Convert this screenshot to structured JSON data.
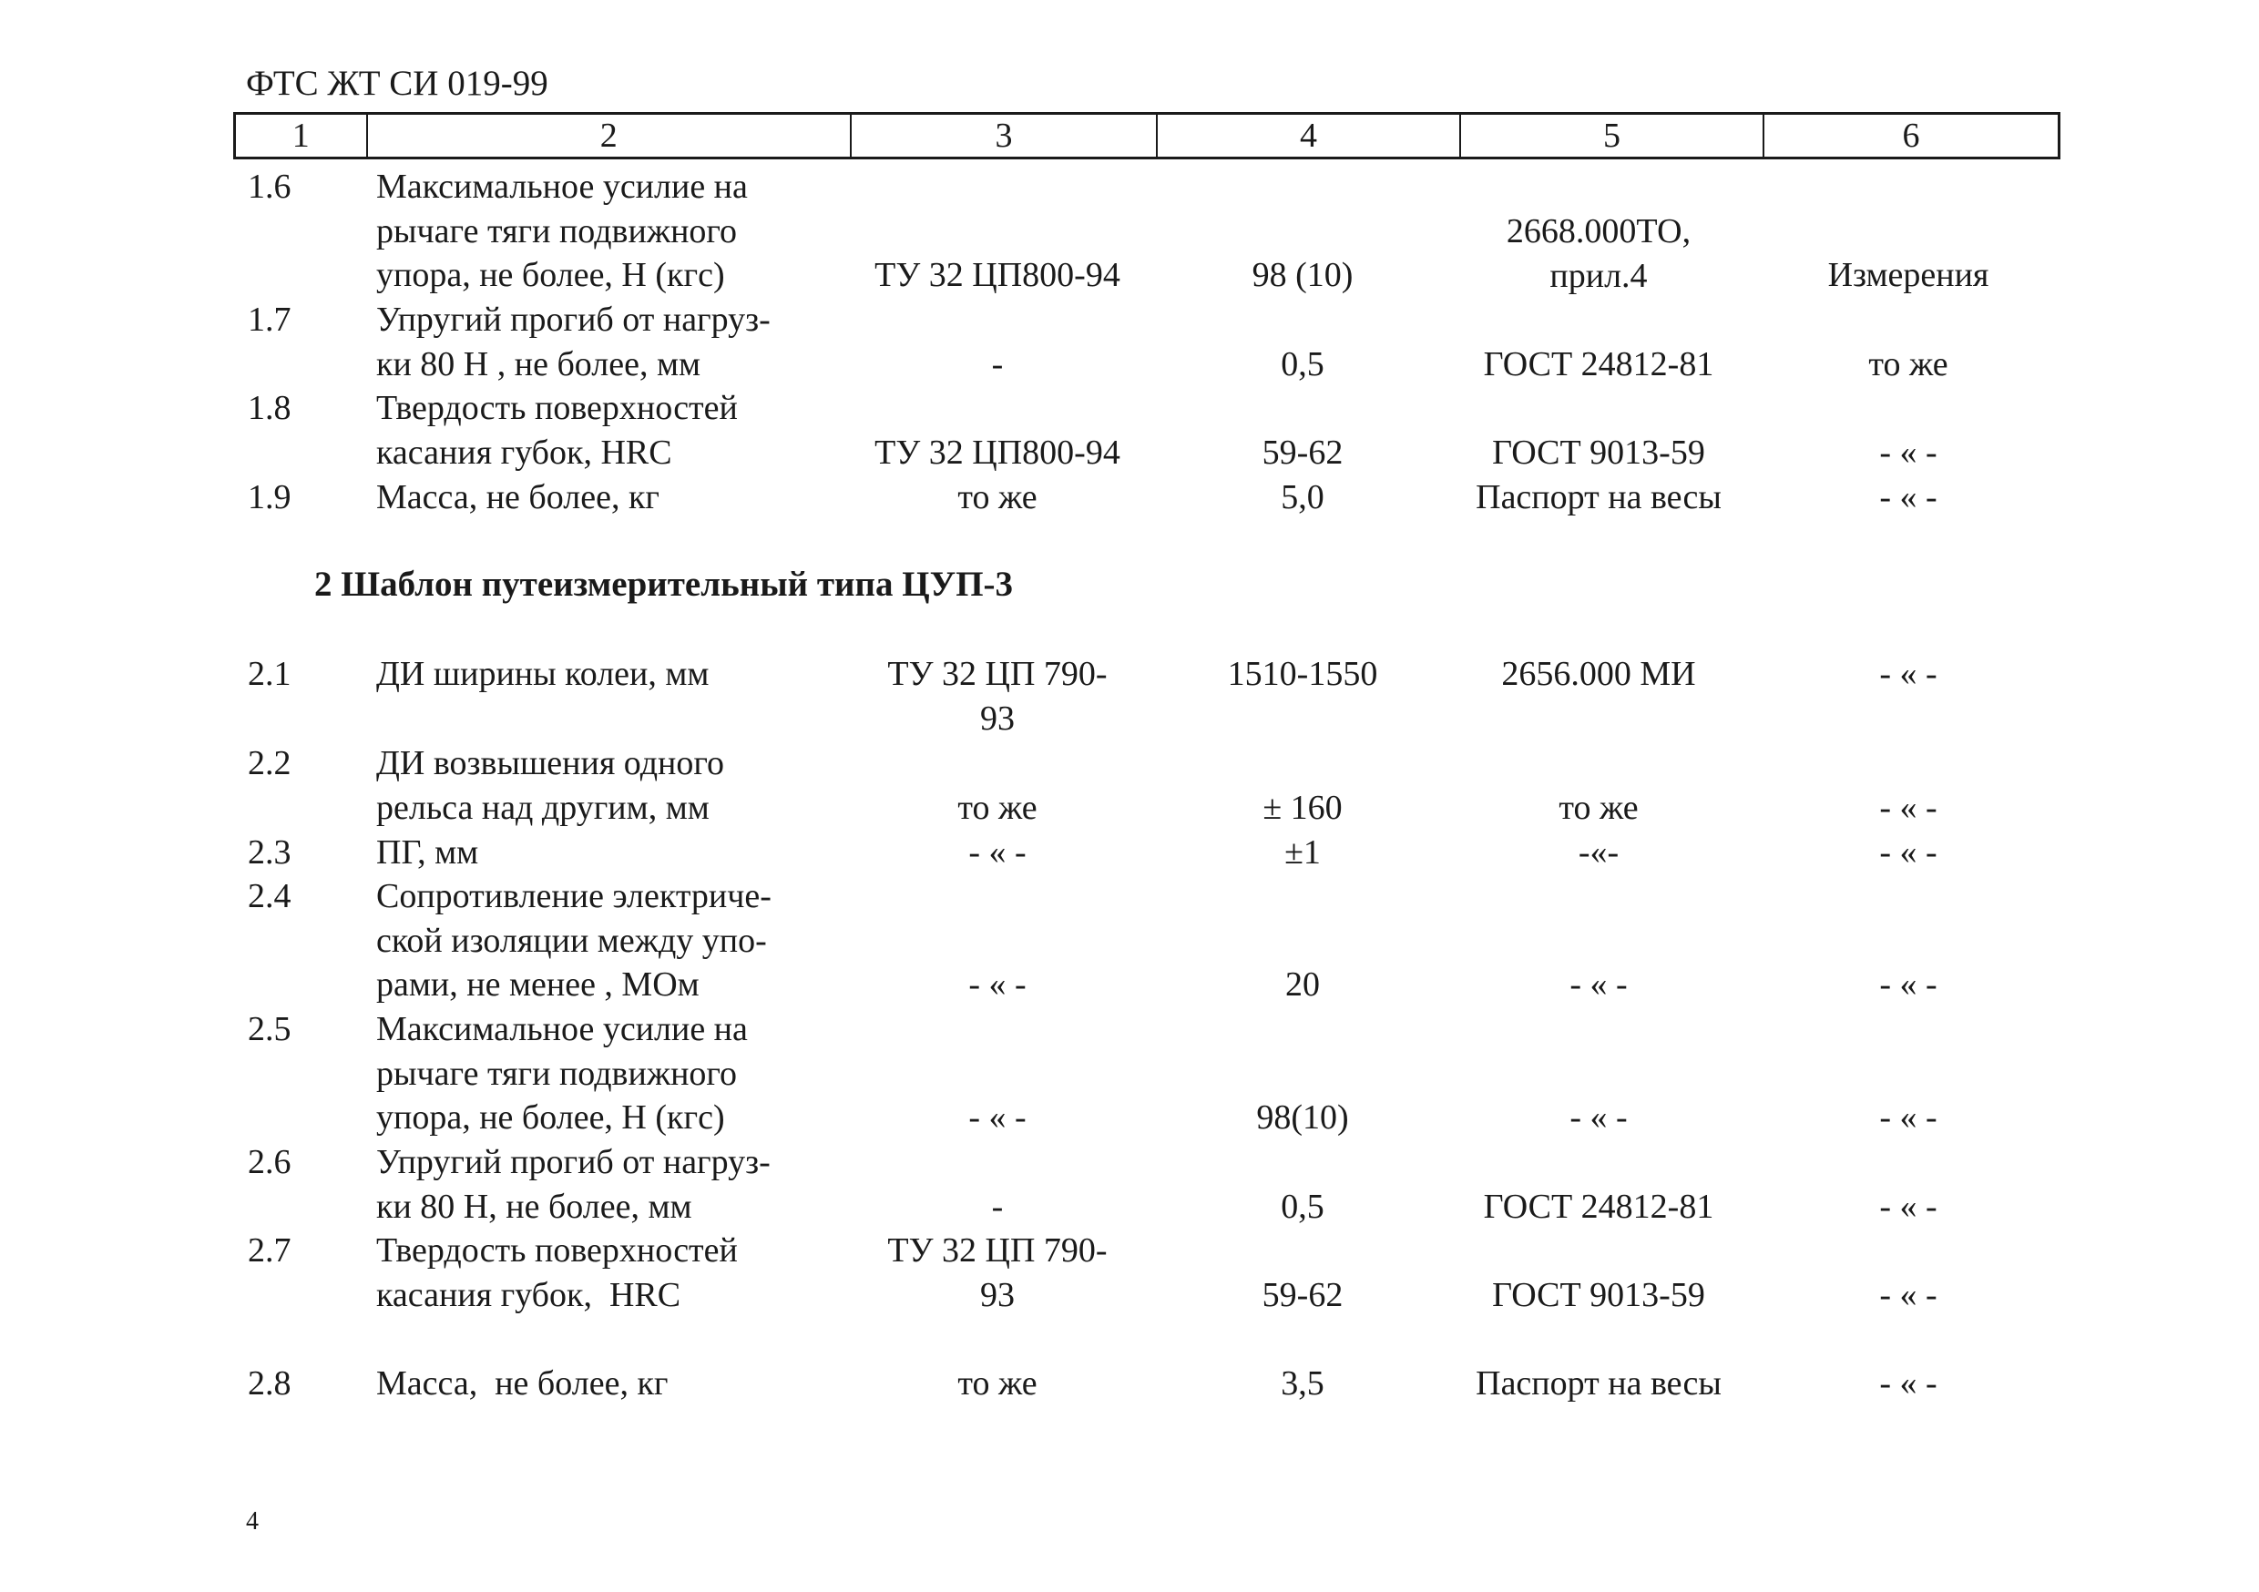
{
  "document": {
    "header": "ФТС ЖТ СИ 019-99",
    "page_number": "4"
  },
  "columns": [
    "1",
    "2",
    "3",
    "4",
    "5",
    "6"
  ],
  "section1_rows": [
    {
      "num": "1.6",
      "name": "Максимальное усилие на\nрычаге тяги подвижного\nупора, не более, Н (кгс)",
      "c3": "ТУ 32 ЦП800-94",
      "c4": "98 (10)",
      "c5": "2668.000ТО,\nприл.4",
      "c6": "Измерения"
    },
    {
      "num": "1.7",
      "name": "Упругий прогиб от нагруз-\nки 80 Н , не более, мм",
      "c3": "-",
      "c4": "0,5",
      "c5": "ГОСТ 24812-81",
      "c6": "то же"
    },
    {
      "num": "1.8",
      "name": "Твердость поверхностей\nкасания губок, HRC",
      "c3": "ТУ 32 ЦП800-94",
      "c4": "59-62",
      "c5": "ГОСТ 9013-59",
      "c6": "- « -"
    },
    {
      "num": "1.9",
      "name": "Масса, не более, кг",
      "c3": "то же",
      "c4": "5,0",
      "c5": "Паспорт на весы",
      "c6": "- « -"
    }
  ],
  "section2_title": "2 Шаблон путеизмерительный типа ЦУП-3",
  "section2_rows": [
    {
      "num": "2.1",
      "name": "ДИ ширины колеи, мм",
      "c3": "ТУ 32 ЦП 790-\n93",
      "c4": "1510-1550",
      "c5": "2656.000 МИ",
      "c6": "- « -"
    },
    {
      "num": "2.2",
      "name": "ДИ возвышения одного\nрельса над другим, мм",
      "c3": "то же",
      "c4": "± 160",
      "c5": "то же",
      "c6": "- « -"
    },
    {
      "num": "2.3",
      "name": "ПГ, мм",
      "c3": "- « -",
      "c4": "±1",
      "c5": "-«-",
      "c6": "- « -"
    },
    {
      "num": "2.4",
      "name": "Сопротивление электриче-\nской изоляции между упо-\nрами, не менее , МОм",
      "c3": "- « -",
      "c4": "20",
      "c5": "- « -",
      "c6": "- « -"
    },
    {
      "num": "2.5",
      "name": "Максимальное усилие на\nрычаге тяги подвижного\nупора, не более, Н (кгс)",
      "c3": "- « -",
      "c4": "98(10)",
      "c5": "- « -",
      "c6": "- « -"
    },
    {
      "num": "2.6",
      "name": "Упругий прогиб от нагруз-\nки 80 Н, не более, мм",
      "c3": "-",
      "c4": "0,5",
      "c5": "ГОСТ 24812-81",
      "c6": "- « -"
    },
    {
      "num": "2.7",
      "name": "Твердость поверхностей\nкасания губок,  HRC",
      "c3": "ТУ 32 ЦП 790-\n93",
      "c4": "59-62",
      "c5": "ГОСТ 9013-59",
      "c6": "- « -"
    },
    {
      "num": "2.8",
      "name": "Масса,  не более, кг",
      "c3": "то же",
      "c4": "3,5",
      "c5": "Паспорт на весы",
      "c6": "- « -"
    }
  ]
}
